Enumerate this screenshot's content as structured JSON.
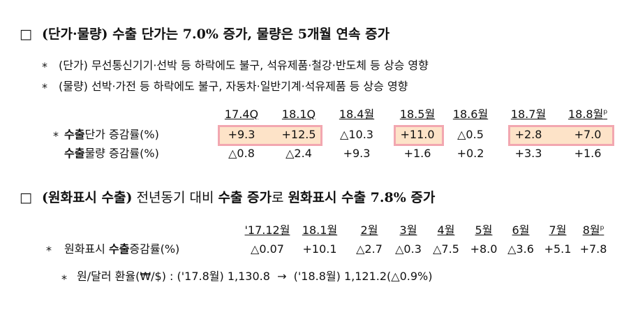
{
  "section1": {
    "marker": "□",
    "heading": [
      {
        "text": "(단가·물량) 수출 단가는 7.0% 증가, 물량은 5개월 연속 증가",
        "bold": true
      }
    ],
    "notes": [
      {
        "bullet": "*",
        "text": "(단가) 무선통신기기·선박 등 하락에도 불구, 석유제품·철강·반도체 등 상승 영향"
      },
      {
        "bullet": "*",
        "text": "(물량) 선박·가전 등 하락에도 불구, 자동차·일반기계·석유제품 등 상승 영향"
      }
    ],
    "table": {
      "columns": [
        "17.4Q",
        "18.1Q",
        "18.4월",
        "18.5월",
        "18.6월",
        "18.7월",
        "18.8월"
      ],
      "prelim_mark": "p",
      "rows": [
        {
          "bullet": "*",
          "label": [
            {
              "text": "수출",
              "bold": true
            },
            {
              "text": "단가 증감률(%)",
              "bold": false
            }
          ],
          "values": [
            "+9.3",
            "+12.5",
            "△10.3",
            "+11.0",
            "△0.5",
            "+2.8",
            "+7.0"
          ]
        },
        {
          "label": [
            {
              "text": "수출",
              "bold": true
            },
            {
              "text": "물량 증감률(%)",
              "bold": false
            }
          ],
          "values": [
            "△0.8",
            "△2.4",
            "+9.3",
            "+1.6",
            "+0.2",
            "+3.3",
            "+1.6"
          ]
        }
      ]
    }
  },
  "section2": {
    "marker": "□",
    "heading": [
      {
        "text": "(원화표시 수출)",
        "bold": true
      },
      {
        "text": " 전년동기 대비 ",
        "bold": false
      },
      {
        "text": "수출 증가",
        "bold": true
      },
      {
        "text": "로 ",
        "bold": false
      },
      {
        "text": "원화표시 수출 7.8% 증가",
        "bold": true
      }
    ],
    "table": {
      "columns": [
        "'17.12월",
        "18.1월",
        "2월",
        "3월",
        "4월",
        "5월",
        "6월",
        "7월",
        "8월"
      ],
      "prelim_mark": "p",
      "rows": [
        {
          "bullet": "*",
          "label": [
            {
              "text": "원화표시 ",
              "bold": false
            },
            {
              "text": "수출",
              "bold": true
            },
            {
              "text": "증감률(%)",
              "bold": false
            }
          ],
          "values": [
            "△0.07",
            "+10.1",
            "△2.7",
            "△0.3",
            "△7.5",
            "+8.0",
            "△3.6",
            "+5.1",
            "+7.8"
          ]
        }
      ]
    },
    "note": {
      "bullet": "*",
      "text": "원/달러 환율(₩/$) : ('17.8월) 1,130.8  →  ('18.8월) 1,121.2(△0.9%)"
    }
  }
}
